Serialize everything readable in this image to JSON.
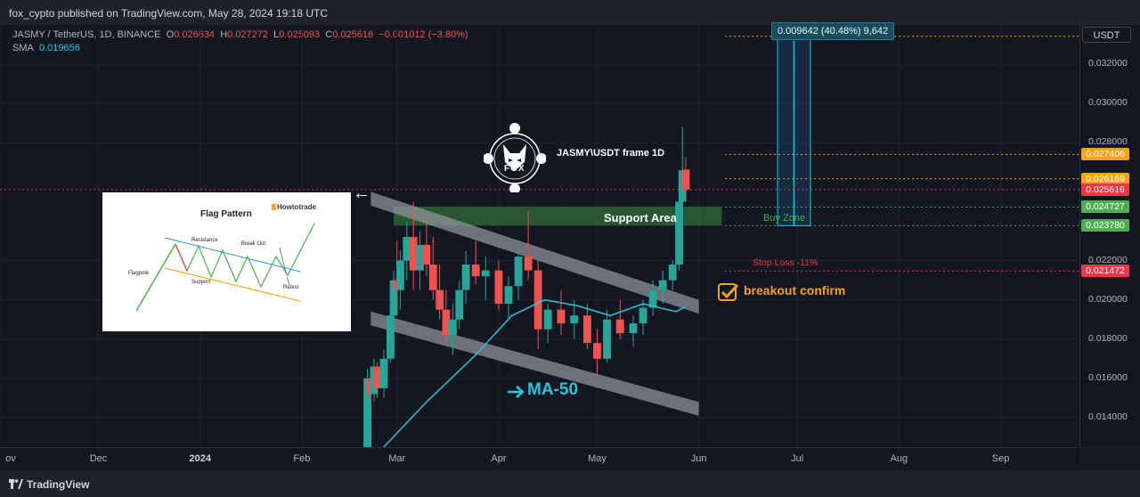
{
  "header": {
    "published": "fox_cypto published on TradingView.com, May 28, 2024 19:18 UTC"
  },
  "symbol": {
    "name": "JASMY / TetherUS, 1D, BINANCE",
    "o_label": "O",
    "o": "0.026634",
    "h_label": "H",
    "h": "0.027272",
    "l_label": "L",
    "l": "0.025093",
    "c_label": "C",
    "c": "0.025616",
    "change": "−0.001012 (−3.80%)",
    "sma_label": "SMA",
    "sma_value": "0.019656"
  },
  "currency_button": "USDT",
  "price_axis": {
    "ticks": [
      "0.032000",
      "0.030000",
      "0.028000",
      "0.022000",
      "0.020000",
      "0.018000",
      "0.016000",
      "0.014000"
    ],
    "tags": [
      {
        "text": "0.027406",
        "color": "#f7a21b"
      },
      {
        "text": "0.026169",
        "color": "#f7a21b"
      },
      {
        "text": "0.025616",
        "color": "#f23645"
      },
      {
        "text": "0.024727",
        "color": "#4caf50"
      },
      {
        "text": "0.023780",
        "color": "#4caf50"
      },
      {
        "text": "0.021472",
        "color": "#f23645"
      }
    ]
  },
  "time_axis": [
    "ov",
    "Dec",
    "2024",
    "Feb",
    "Mar",
    "Apr",
    "May",
    "Jun",
    "Jul",
    "Aug",
    "Sep"
  ],
  "measure_label": "0.009642 (40.48%) 9,642",
  "annotations": {
    "frame_label": "JASMY\\USDT frame 1D",
    "logo_text": "FOX",
    "support_area": "Support Area",
    "buy_zone": "Buy Zone",
    "stop_loss": "Stop Loss -11%",
    "breakout": "breakout confirm",
    "ma50": "MA-50",
    "arrow_left": "←"
  },
  "flag_pattern": {
    "title": "Flag Pattern",
    "brand": "Howtotrade",
    "resistance": "Resistance",
    "break_out": "Break Out",
    "flagpole": "Flagpole",
    "support": "Support",
    "retest": "Retest"
  },
  "footer": {
    "brand": "TradingView"
  },
  "colors": {
    "up": "#26a69a",
    "down": "#ef5350",
    "sma": "#26c6da",
    "background": "#131722"
  },
  "chart_data": {
    "type": "candlestick",
    "symbol": "JASMY/USDT",
    "timeframe": "1D",
    "y_range": [
      0.0125,
      0.034
    ],
    "x_range": [
      "2023-11-01",
      "2024-09-25"
    ],
    "x_ticks": [
      "ov",
      "Dec",
      "2024",
      "Feb",
      "Mar",
      "Apr",
      "May",
      "Jun",
      "Jul",
      "Aug",
      "Sep"
    ],
    "y_ticks": [
      0.014,
      0.016,
      0.018,
      0.02,
      0.022,
      0.028,
      0.03,
      0.032
    ],
    "last_close": 0.025616,
    "levels": [
      {
        "label": "Buy Zone",
        "value": 0.024727
      },
      {
        "label": "Buy Zone",
        "value": 0.02378
      },
      {
        "label": "Stop Loss -11%",
        "value": 0.021472
      },
      {
        "value": 0.026169
      },
      {
        "value": 0.027406
      },
      {
        "value": 0.033422
      }
    ],
    "sma_approx": [
      [
        "2024-02-22",
        0.0118
      ],
      [
        "2024-03-10",
        0.0148
      ],
      [
        "2024-03-25",
        0.0172
      ],
      [
        "2024-04-05",
        0.0192
      ],
      [
        "2024-04-15",
        0.02
      ],
      [
        "2024-04-25",
        0.0197
      ],
      [
        "2024-05-05",
        0.0192
      ],
      [
        "2024-05-15",
        0.0198
      ],
      [
        "2024-05-25",
        0.0194
      ],
      [
        "2024-05-28",
        0.01966
      ]
    ],
    "candles_approx": [
      [
        "2024-02-20",
        0.0108,
        0.0112,
        0.01,
        0.011
      ],
      [
        "2024-02-21",
        0.011,
        0.0165,
        0.0108,
        0.016
      ],
      [
        "2024-02-22",
        0.016,
        0.0163,
        0.0148,
        0.0152
      ],
      [
        "2024-02-23",
        0.0152,
        0.017,
        0.0148,
        0.0166
      ],
      [
        "2024-02-24",
        0.0166,
        0.0168,
        0.015,
        0.0155
      ],
      [
        "2024-02-26",
        0.0155,
        0.0175,
        0.015,
        0.017
      ],
      [
        "2024-02-28",
        0.017,
        0.0195,
        0.0168,
        0.0192
      ],
      [
        "2024-02-29",
        0.0192,
        0.0215,
        0.0185,
        0.021
      ],
      [
        "2024-03-01",
        0.021,
        0.023,
        0.02,
        0.0205
      ],
      [
        "2024-03-02",
        0.0205,
        0.0225,
        0.0195,
        0.022
      ],
      [
        "2024-03-04",
        0.022,
        0.024,
        0.021,
        0.0232
      ],
      [
        "2024-03-06",
        0.0232,
        0.025,
        0.0205,
        0.0215
      ],
      [
        "2024-03-08",
        0.0215,
        0.0235,
        0.0205,
        0.0228
      ],
      [
        "2024-03-10",
        0.0228,
        0.0242,
        0.0212,
        0.0218
      ],
      [
        "2024-03-12",
        0.0218,
        0.0232,
        0.02,
        0.0205
      ],
      [
        "2024-03-14",
        0.0205,
        0.0218,
        0.019,
        0.0195
      ],
      [
        "2024-03-16",
        0.0195,
        0.0205,
        0.0178,
        0.0182
      ],
      [
        "2024-03-18",
        0.0182,
        0.0198,
        0.0172,
        0.019
      ],
      [
        "2024-03-20",
        0.019,
        0.021,
        0.0185,
        0.0205
      ],
      [
        "2024-03-22",
        0.0205,
        0.0225,
        0.0198,
        0.0218
      ],
      [
        "2024-03-25",
        0.0218,
        0.023,
        0.0208,
        0.0212
      ],
      [
        "2024-03-28",
        0.0212,
        0.0222,
        0.02,
        0.0215
      ],
      [
        "2024-04-01",
        0.0215,
        0.022,
        0.0195,
        0.0198
      ],
      [
        "2024-04-04",
        0.0198,
        0.0212,
        0.019,
        0.0207
      ],
      [
        "2024-04-07",
        0.0207,
        0.0225,
        0.02,
        0.0222
      ],
      [
        "2024-04-10",
        0.0222,
        0.0245,
        0.021,
        0.0215
      ],
      [
        "2024-04-13",
        0.0215,
        0.022,
        0.0175,
        0.0185
      ],
      [
        "2024-04-16",
        0.0185,
        0.0198,
        0.0178,
        0.0195
      ],
      [
        "2024-04-20",
        0.0195,
        0.0205,
        0.0182,
        0.0188
      ],
      [
        "2024-04-24",
        0.0188,
        0.02,
        0.018,
        0.0192
      ],
      [
        "2024-04-28",
        0.0192,
        0.0198,
        0.0175,
        0.0178
      ],
      [
        "2024-05-01",
        0.0178,
        0.0185,
        0.0162,
        0.017
      ],
      [
        "2024-05-04",
        0.017,
        0.0195,
        0.0168,
        0.019
      ],
      [
        "2024-05-08",
        0.019,
        0.02,
        0.018,
        0.0183
      ],
      [
        "2024-05-12",
        0.0183,
        0.0192,
        0.0176,
        0.0188
      ],
      [
        "2024-05-15",
        0.0188,
        0.02,
        0.0182,
        0.0196
      ],
      [
        "2024-05-18",
        0.0196,
        0.021,
        0.0192,
        0.0205
      ],
      [
        "2024-05-21",
        0.0205,
        0.0215,
        0.0198,
        0.021
      ],
      [
        "2024-05-24",
        0.021,
        0.022,
        0.0205,
        0.0218
      ],
      [
        "2024-05-26",
        0.0218,
        0.0255,
        0.0215,
        0.025
      ],
      [
        "2024-05-27",
        0.025,
        0.0288,
        0.0245,
        0.0266
      ],
      [
        "2024-05-28",
        0.026634,
        0.027272,
        0.025093,
        0.025616
      ]
    ]
  }
}
